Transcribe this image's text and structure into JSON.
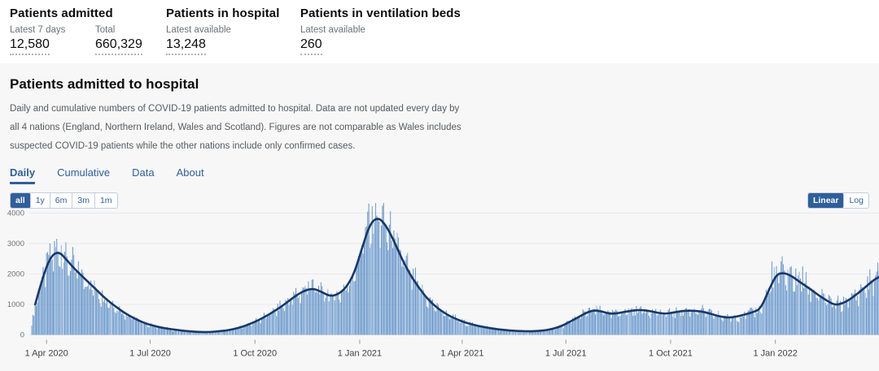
{
  "summary": {
    "items": [
      {
        "title": "Patients admitted",
        "stats": [
          {
            "label": "Latest 7 days",
            "value": "12,580"
          },
          {
            "label": "Total",
            "value": "660,329"
          }
        ]
      },
      {
        "title": "Patients in hospital",
        "stats": [
          {
            "label": "Latest available",
            "value": "13,248"
          }
        ]
      },
      {
        "title": "Patients in ventilation beds",
        "stats": [
          {
            "label": "Latest available",
            "value": "260"
          }
        ]
      }
    ]
  },
  "card": {
    "title": "Patients admitted to hospital",
    "description": "Daily and cumulative numbers of COVID-19 patients admitted to hospital. Data are not updated every day by all 4 nations (England, Northern Ireland, Wales and Scotland). Figures are not comparable as Wales includes suspected COVID-19 patients while the other nations include only confirmed cases.",
    "tabs": [
      {
        "label": "Daily",
        "active": true
      },
      {
        "label": "Cumulative",
        "active": false
      },
      {
        "label": "Data",
        "active": false
      },
      {
        "label": "About",
        "active": false
      }
    ],
    "range_buttons": [
      {
        "label": "all",
        "active": true
      },
      {
        "label": "1y",
        "active": false
      },
      {
        "label": "6m",
        "active": false
      },
      {
        "label": "3m",
        "active": false
      },
      {
        "label": "1m",
        "active": false
      }
    ],
    "scale_toggle": [
      {
        "label": "Linear",
        "active": true
      },
      {
        "label": "Log",
        "active": false
      }
    ]
  },
  "colors": {
    "accent_blue": "#2e5e9c",
    "bar_fill": "#5d8fc6",
    "bar_fill_light": "#8fb5dd",
    "line_stroke": "#17386b",
    "grid": "#e8e8e8",
    "axis_text": "#6b7276",
    "x_label_text": "#424242",
    "card_background": "#f7f7f8"
  },
  "chart_data": {
    "type": "bar",
    "title": "Daily COVID-19 patients admitted to hospital (bars: daily, line: 7-day rolling average)",
    "xlabel": "",
    "ylabel": "",
    "ylim": [
      0,
      4000
    ],
    "y_ticks": [
      0,
      1000,
      2000,
      3000,
      4000
    ],
    "grid": true,
    "legend": "none",
    "x_start": "2020-03-19",
    "x_end": "2022-04-02",
    "x_ticks": [
      {
        "date": "2020-04-01",
        "label": "1 Apr 2020"
      },
      {
        "date": "2020-07-01",
        "label": "1 Jul 2020"
      },
      {
        "date": "2020-10-01",
        "label": "1 Oct 2020"
      },
      {
        "date": "2021-01-01",
        "label": "1 Jan 2021"
      },
      {
        "date": "2021-04-01",
        "label": "1 Apr 2021"
      },
      {
        "date": "2021-07-01",
        "label": "1 Jul 2021"
      },
      {
        "date": "2021-10-01",
        "label": "1 Oct 2021"
      },
      {
        "date": "2022-01-01",
        "label": "1 Jan 2022"
      }
    ],
    "bar_lead_in": [
      [
        "2020-03-19",
        350
      ],
      [
        "2020-03-20",
        520
      ],
      [
        "2020-03-21",
        720
      ]
    ],
    "line_points": [
      [
        "2020-03-22",
        1000
      ],
      [
        "2020-03-29",
        1950
      ],
      [
        "2020-04-05",
        2600
      ],
      [
        "2020-04-12",
        2740
      ],
      [
        "2020-04-19",
        2450
      ],
      [
        "2020-04-26",
        2150
      ],
      [
        "2020-05-03",
        1900
      ],
      [
        "2020-05-10",
        1650
      ],
      [
        "2020-05-17",
        1400
      ],
      [
        "2020-05-24",
        1150
      ],
      [
        "2020-05-31",
        950
      ],
      [
        "2020-06-07",
        760
      ],
      [
        "2020-06-14",
        600
      ],
      [
        "2020-06-21",
        470
      ],
      [
        "2020-06-28",
        360
      ],
      [
        "2020-07-05",
        290
      ],
      [
        "2020-07-12",
        230
      ],
      [
        "2020-07-19",
        190
      ],
      [
        "2020-07-26",
        155
      ],
      [
        "2020-08-02",
        125
      ],
      [
        "2020-08-09",
        105
      ],
      [
        "2020-08-16",
        92
      ],
      [
        "2020-08-23",
        96
      ],
      [
        "2020-08-30",
        115
      ],
      [
        "2020-09-06",
        145
      ],
      [
        "2020-09-13",
        195
      ],
      [
        "2020-09-20",
        265
      ],
      [
        "2020-09-27",
        365
      ],
      [
        "2020-10-04",
        480
      ],
      [
        "2020-10-11",
        620
      ],
      [
        "2020-10-18",
        780
      ],
      [
        "2020-10-25",
        950
      ],
      [
        "2020-11-01",
        1150
      ],
      [
        "2020-11-08",
        1340
      ],
      [
        "2020-11-15",
        1480
      ],
      [
        "2020-11-22",
        1520
      ],
      [
        "2020-11-29",
        1400
      ],
      [
        "2020-12-06",
        1270
      ],
      [
        "2020-12-13",
        1330
      ],
      [
        "2020-12-20",
        1550
      ],
      [
        "2020-12-27",
        2000
      ],
      [
        "2021-01-03",
        2850
      ],
      [
        "2021-01-10",
        3650
      ],
      [
        "2021-01-17",
        3870
      ],
      [
        "2021-01-24",
        3600
      ],
      [
        "2021-01-31",
        3100
      ],
      [
        "2021-02-07",
        2500
      ],
      [
        "2021-02-14",
        2000
      ],
      [
        "2021-02-21",
        1600
      ],
      [
        "2021-02-28",
        1250
      ],
      [
        "2021-03-07",
        980
      ],
      [
        "2021-03-14",
        780
      ],
      [
        "2021-03-21",
        620
      ],
      [
        "2021-03-28",
        500
      ],
      [
        "2021-04-04",
        400
      ],
      [
        "2021-04-11",
        330
      ],
      [
        "2021-04-18",
        270
      ],
      [
        "2021-04-25",
        225
      ],
      [
        "2021-05-02",
        185
      ],
      [
        "2021-05-09",
        155
      ],
      [
        "2021-05-16",
        135
      ],
      [
        "2021-05-23",
        122
      ],
      [
        "2021-05-30",
        118
      ],
      [
        "2021-06-06",
        128
      ],
      [
        "2021-06-13",
        150
      ],
      [
        "2021-06-20",
        200
      ],
      [
        "2021-06-27",
        285
      ],
      [
        "2021-07-04",
        420
      ],
      [
        "2021-07-11",
        560
      ],
      [
        "2021-07-18",
        710
      ],
      [
        "2021-07-25",
        810
      ],
      [
        "2021-08-01",
        780
      ],
      [
        "2021-08-08",
        690
      ],
      [
        "2021-08-15",
        705
      ],
      [
        "2021-08-22",
        760
      ],
      [
        "2021-08-29",
        800
      ],
      [
        "2021-09-05",
        820
      ],
      [
        "2021-09-12",
        790
      ],
      [
        "2021-09-19",
        730
      ],
      [
        "2021-09-26",
        690
      ],
      [
        "2021-10-03",
        730
      ],
      [
        "2021-10-10",
        780
      ],
      [
        "2021-10-17",
        800
      ],
      [
        "2021-10-24",
        785
      ],
      [
        "2021-10-31",
        750
      ],
      [
        "2021-11-07",
        670
      ],
      [
        "2021-11-14",
        600
      ],
      [
        "2021-11-21",
        565
      ],
      [
        "2021-11-28",
        600
      ],
      [
        "2021-12-05",
        670
      ],
      [
        "2021-12-12",
        740
      ],
      [
        "2021-12-19",
        850
      ],
      [
        "2021-12-26",
        1450
      ],
      [
        "2022-01-02",
        2000
      ],
      [
        "2022-01-09",
        2040
      ],
      [
        "2022-01-16",
        1920
      ],
      [
        "2022-01-23",
        1720
      ],
      [
        "2022-02-01",
        1500
      ],
      [
        "2022-02-08",
        1300
      ],
      [
        "2022-02-15",
        1130
      ],
      [
        "2022-02-22",
        980
      ],
      [
        "2022-03-01",
        1030
      ],
      [
        "2022-03-08",
        1180
      ],
      [
        "2022-03-15",
        1380
      ],
      [
        "2022-03-22",
        1600
      ],
      [
        "2022-03-29",
        1820
      ],
      [
        "2022-04-02",
        1900
      ]
    ],
    "bar_spikes": [
      [
        "2020-04-08",
        3080
      ],
      [
        "2020-04-14",
        2950
      ],
      [
        "2020-11-17",
        1760
      ],
      [
        "2021-01-08",
        4050
      ],
      [
        "2021-01-12",
        4230
      ],
      [
        "2021-12-29",
        2420
      ],
      [
        "2022-01-25",
        2250
      ],
      [
        "2022-04-02",
        2080
      ]
    ],
    "bar_noise": {
      "weekly_amplitude": 0.9,
      "random_amplitude": 0.38
    }
  }
}
